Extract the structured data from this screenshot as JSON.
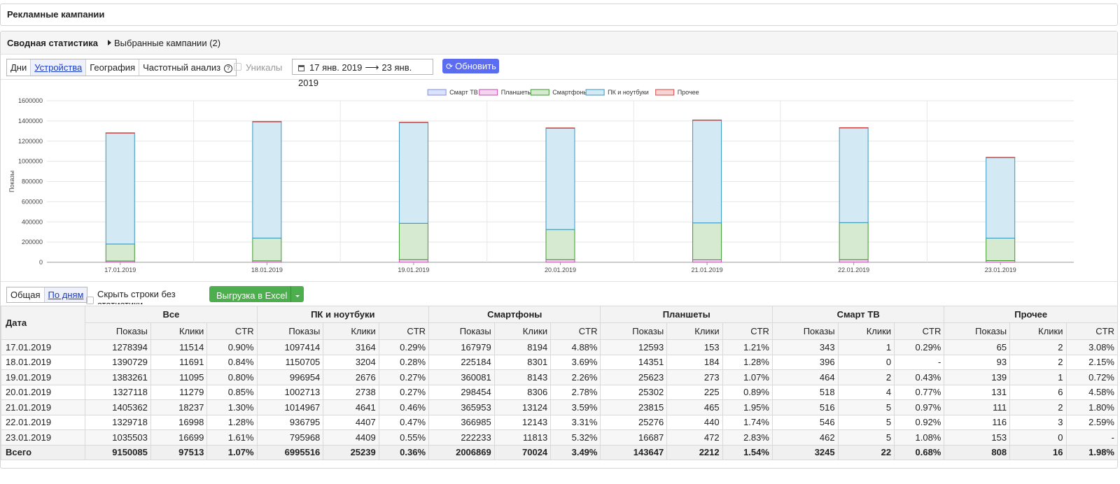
{
  "header": {
    "title": "Рекламные кампании"
  },
  "summary": {
    "title": "Сводная статистика",
    "selected_link": "Выбранные кампании (2)"
  },
  "toolbar": {
    "tabs": [
      "Дни",
      "Устройства",
      "География",
      "Частотный анализ"
    ],
    "active_tab": "Устройства",
    "uniques_label": "Уникалы",
    "date_from": "17 янв. 2019",
    "date_to": "23 янв. 2019",
    "refresh_label": "Обновить"
  },
  "chart_data": {
    "type": "bar",
    "stacked": true,
    "ylabel": "Показы",
    "ylim": [
      0,
      1600000
    ],
    "yticks": [
      "0",
      "200000",
      "400000",
      "600000",
      "800000",
      "1000000",
      "1200000",
      "1400000",
      "1600000"
    ],
    "categories": [
      "17.01.2019",
      "18.01.2019",
      "19.01.2019",
      "20.01.2019",
      "21.01.2019",
      "22.01.2019",
      "23.01.2019"
    ],
    "legend_position": "top",
    "series": [
      {
        "name": "Смарт ТВ",
        "fill": "#dbe2fb",
        "stroke": "#7f8fe6",
        "values": [
          343,
          396,
          464,
          518,
          516,
          546,
          462
        ]
      },
      {
        "name": "Планшеты",
        "fill": "#f4d4ef",
        "stroke": "#c24fb3",
        "values": [
          12593,
          14351,
          25623,
          25302,
          23815,
          25276,
          16687
        ]
      },
      {
        "name": "Смартфоны",
        "fill": "#d5ead0",
        "stroke": "#3e9a2e",
        "values": [
          167979,
          225184,
          360081,
          298454,
          365953,
          366985,
          222233
        ]
      },
      {
        "name": "ПК и ноутбуки",
        "fill": "#d3e9f3",
        "stroke": "#3897c3",
        "values": [
          1097414,
          1150705,
          996954,
          1002713,
          1014967,
          936795,
          795968
        ]
      },
      {
        "name": "Прочее",
        "fill": "#f8d3d3",
        "stroke": "#d44a4a",
        "values": [
          65,
          93,
          139,
          131,
          111,
          116,
          153
        ]
      }
    ]
  },
  "table_toolbar": {
    "tabs": [
      "Общая",
      "По дням"
    ],
    "active_tab": "По дням",
    "hide_rows_label": "Скрыть строки без статистики",
    "export_label": "Выгрузка в Excel"
  },
  "table": {
    "date_header": "Дата",
    "groups": [
      "Все",
      "ПК и ноутбуки",
      "Смартфоны",
      "Планшеты",
      "Смарт ТВ",
      "Прочее"
    ],
    "sub_headers": [
      "Показы",
      "Клики",
      "CTR"
    ],
    "rows": [
      [
        "17.01.2019",
        "1278394",
        "11514",
        "0.90%",
        "1097414",
        "3164",
        "0.29%",
        "167979",
        "8194",
        "4.88%",
        "12593",
        "153",
        "1.21%",
        "343",
        "1",
        "0.29%",
        "65",
        "2",
        "3.08%"
      ],
      [
        "18.01.2019",
        "1390729",
        "11691",
        "0.84%",
        "1150705",
        "3204",
        "0.28%",
        "225184",
        "8301",
        "3.69%",
        "14351",
        "184",
        "1.28%",
        "396",
        "0",
        "-",
        "93",
        "2",
        "2.15%"
      ],
      [
        "19.01.2019",
        "1383261",
        "11095",
        "0.80%",
        "996954",
        "2676",
        "0.27%",
        "360081",
        "8143",
        "2.26%",
        "25623",
        "273",
        "1.07%",
        "464",
        "2",
        "0.43%",
        "139",
        "1",
        "0.72%"
      ],
      [
        "20.01.2019",
        "1327118",
        "11279",
        "0.85%",
        "1002713",
        "2738",
        "0.27%",
        "298454",
        "8306",
        "2.78%",
        "25302",
        "225",
        "0.89%",
        "518",
        "4",
        "0.77%",
        "131",
        "6",
        "4.58%"
      ],
      [
        "21.01.2019",
        "1405362",
        "18237",
        "1.30%",
        "1014967",
        "4641",
        "0.46%",
        "365953",
        "13124",
        "3.59%",
        "23815",
        "465",
        "1.95%",
        "516",
        "5",
        "0.97%",
        "111",
        "2",
        "1.80%"
      ],
      [
        "22.01.2019",
        "1329718",
        "16998",
        "1.28%",
        "936795",
        "4407",
        "0.47%",
        "366985",
        "12143",
        "3.31%",
        "25276",
        "440",
        "1.74%",
        "546",
        "5",
        "0.92%",
        "116",
        "3",
        "2.59%"
      ],
      [
        "23.01.2019",
        "1035503",
        "16699",
        "1.61%",
        "795968",
        "4409",
        "0.55%",
        "222233",
        "11813",
        "5.32%",
        "16687",
        "472",
        "2.83%",
        "462",
        "5",
        "1.08%",
        "153",
        "0",
        "-"
      ]
    ],
    "total": [
      "Всего",
      "9150085",
      "97513",
      "1.07%",
      "6995516",
      "25239",
      "0.36%",
      "2006869",
      "70024",
      "3.49%",
      "143647",
      "2212",
      "1.54%",
      "3245",
      "22",
      "0.68%",
      "808",
      "16",
      "1.98%"
    ]
  }
}
